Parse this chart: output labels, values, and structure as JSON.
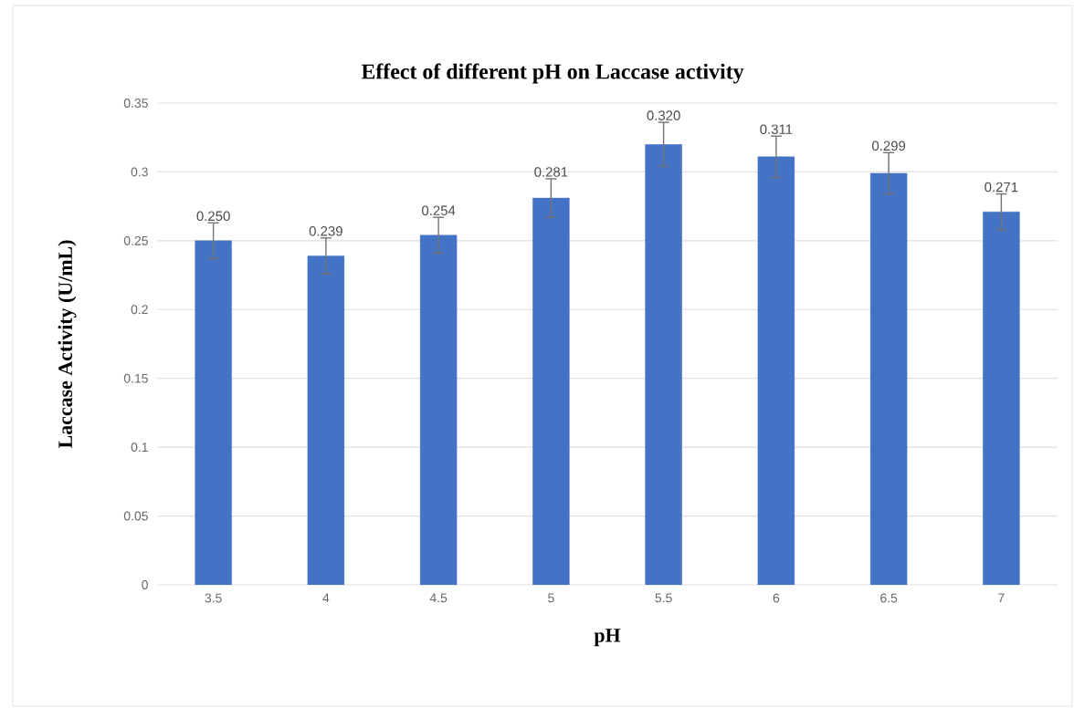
{
  "chart_data": {
    "type": "bar",
    "title": "Effect of different pH on Laccase activity",
    "xlabel": "pH",
    "ylabel": "Laccase Activity (U/mL)",
    "categories": [
      "3.5",
      "4",
      "4.5",
      "5",
      "5.5",
      "6",
      "6.5",
      "7"
    ],
    "values": [
      0.25,
      0.239,
      0.254,
      0.281,
      0.32,
      0.311,
      0.299,
      0.271
    ],
    "errors": [
      0.013,
      0.013,
      0.013,
      0.014,
      0.016,
      0.015,
      0.015,
      0.013
    ],
    "value_labels": [
      "0.250",
      "0.239",
      "0.254",
      "0.281",
      "0.320",
      "0.311",
      "0.299",
      "0.271"
    ],
    "color": "#4472c4",
    "grid": "y",
    "ylim": [
      0,
      0.35
    ],
    "yticks": [
      0,
      0.05,
      0.1,
      0.15,
      0.2,
      0.25,
      0.3,
      0.35
    ]
  }
}
